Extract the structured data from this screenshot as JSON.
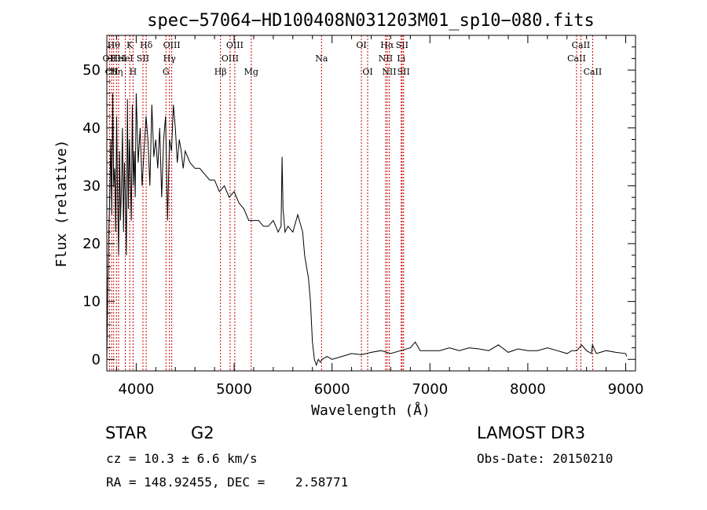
{
  "chart_data": {
    "type": "line",
    "title": "spec−57064−HD100408N031203M01_sp10−080.fits",
    "xlabel": "Wavelength (Å)",
    "ylabel": "Flux (relative)",
    "xlim": [
      3700,
      9100
    ],
    "ylim": [
      -2,
      56
    ],
    "xticks": [
      4000,
      5000,
      6000,
      7000,
      8000,
      9000
    ],
    "yticks": [
      0,
      10,
      20,
      30,
      40,
      50
    ],
    "grid": false,
    "line_color": "#000000",
    "marker_line_color": "#cc0000",
    "series": [
      {
        "x": [
          3700,
          3710,
          3720,
          3730,
          3740,
          3750,
          3760,
          3770,
          3780,
          3790,
          3800,
          3810,
          3820,
          3830,
          3840,
          3850,
          3860,
          3870,
          3880,
          3890,
          3900,
          3910,
          3920,
          3930,
          3940,
          3950,
          3960,
          3970,
          3980,
          3990,
          4000,
          4020,
          4040,
          4060,
          4080,
          4100,
          4120,
          4140,
          4160,
          4180,
          4200,
          4220,
          4240,
          4260,
          4280,
          4300,
          4320,
          4340,
          4360,
          4380,
          4400,
          4420,
          4440,
          4460,
          4480,
          4500,
          4550,
          4600,
          4650,
          4700,
          4750,
          4800,
          4850,
          4900,
          4950,
          5000,
          5050,
          5100,
          5150,
          5200,
          5250,
          5300,
          5350,
          5400,
          5450,
          5480,
          5490,
          5500,
          5510,
          5520,
          5550,
          5600,
          5650,
          5700,
          5720,
          5740,
          5760,
          5780,
          5800,
          5820,
          5840,
          5860,
          5880,
          5900,
          5950,
          6000,
          6100,
          6200,
          6300,
          6400,
          6500,
          6600,
          6700,
          6800,
          6850,
          6900,
          7000,
          7100,
          7200,
          7300,
          7400,
          7500,
          7600,
          7700,
          7800,
          7900,
          8000,
          8100,
          8200,
          8300,
          8400,
          8450,
          8500,
          8550,
          8600,
          8650,
          8660,
          8700,
          8800,
          8900,
          9000,
          9010
        ],
        "y": [
          0,
          12,
          22,
          28,
          38,
          25,
          46,
          30,
          33,
          22,
          42,
          28,
          18,
          36,
          24,
          30,
          40,
          22,
          34,
          28,
          18,
          45,
          26,
          38,
          32,
          24,
          44,
          30,
          36,
          28,
          46,
          34,
          40,
          30,
          36,
          42,
          38,
          30,
          44,
          35,
          38,
          33,
          40,
          28,
          38,
          42,
          24,
          38,
          36,
          44,
          40,
          34,
          38,
          36,
          33,
          36,
          34,
          33,
          33,
          32,
          31,
          31,
          29,
          30,
          28,
          29,
          27,
          26,
          24,
          24,
          24,
          23,
          23,
          24,
          22,
          23,
          35,
          26,
          24,
          22,
          23,
          22,
          25,
          22,
          18,
          16,
          14,
          10,
          3,
          0,
          -1,
          0,
          -0.5,
          0,
          0.5,
          0,
          0.5,
          1,
          0.8,
          1.2,
          1.5,
          1.0,
          1.5,
          2.0,
          3.0,
          1.5,
          1.5,
          1.5,
          2.0,
          1.5,
          2.0,
          1.8,
          1.5,
          2.5,
          1.2,
          1.8,
          1.5,
          1.5,
          2.0,
          1.5,
          1.0,
          1.5,
          1.5,
          2.5,
          1.5,
          1.0,
          2.5,
          1.0,
          1.5,
          1.2,
          1.0,
          0.5
        ]
      }
    ],
    "line_markers": [
      {
        "x": 3727,
        "label": "OII",
        "row": 1
      },
      {
        "x": 3750,
        "label": "CII",
        "row": 2
      },
      {
        "x": 3770,
        "label": "Hθ",
        "row": 0
      },
      {
        "x": 3798,
        "label": "Hη",
        "row": 2
      },
      {
        "x": 3820,
        "label": "HeI",
        "row": 1
      },
      {
        "x": 3889,
        "label": "HeI",
        "row": 1
      },
      {
        "x": 3934,
        "label": "K",
        "row": 0
      },
      {
        "x": 3968,
        "label": "H",
        "row": 2
      },
      {
        "x": 4069,
        "label": "SII",
        "row": 1
      },
      {
        "x": 4102,
        "label": "Hδ",
        "row": 0
      },
      {
        "x": 4304,
        "label": "G",
        "row": 2
      },
      {
        "x": 4340,
        "label": "Hγ",
        "row": 1
      },
      {
        "x": 4363,
        "label": "OIII",
        "row": 0
      },
      {
        "x": 4861,
        "label": "Hβ",
        "row": 2
      },
      {
        "x": 4959,
        "label": "OIII",
        "row": 1
      },
      {
        "x": 5007,
        "label": "OIII",
        "row": 0
      },
      {
        "x": 5175,
        "label": "Mg",
        "row": 2
      },
      {
        "x": 5893,
        "label": "Na",
        "row": 1
      },
      {
        "x": 6300,
        "label": "OI",
        "row": 0
      },
      {
        "x": 6364,
        "label": "OI",
        "row": 2
      },
      {
        "x": 6548,
        "label": "NII",
        "row": 1
      },
      {
        "x": 6563,
        "label": "Hα",
        "row": 0
      },
      {
        "x": 6584,
        "label": "NII",
        "row": 2
      },
      {
        "x": 6707,
        "label": "Li",
        "row": 1
      },
      {
        "x": 6716,
        "label": "SII",
        "row": 0
      },
      {
        "x": 6731,
        "label": "SII",
        "row": 2
      },
      {
        "x": 8498,
        "label": "CaII",
        "row": 1
      },
      {
        "x": 8542,
        "label": "CaII",
        "row": 0
      },
      {
        "x": 8662,
        "label": "CaII",
        "row": 2
      }
    ]
  },
  "info": {
    "object_class": "STAR",
    "subclass": "G2",
    "survey": "LAMOST DR3",
    "cz": "cz = 10.3 ± 6.6 km/s",
    "obs_date": "Obs-Date: 20150210",
    "coords": "RA = 148.92455, DEC =    2.58771"
  }
}
